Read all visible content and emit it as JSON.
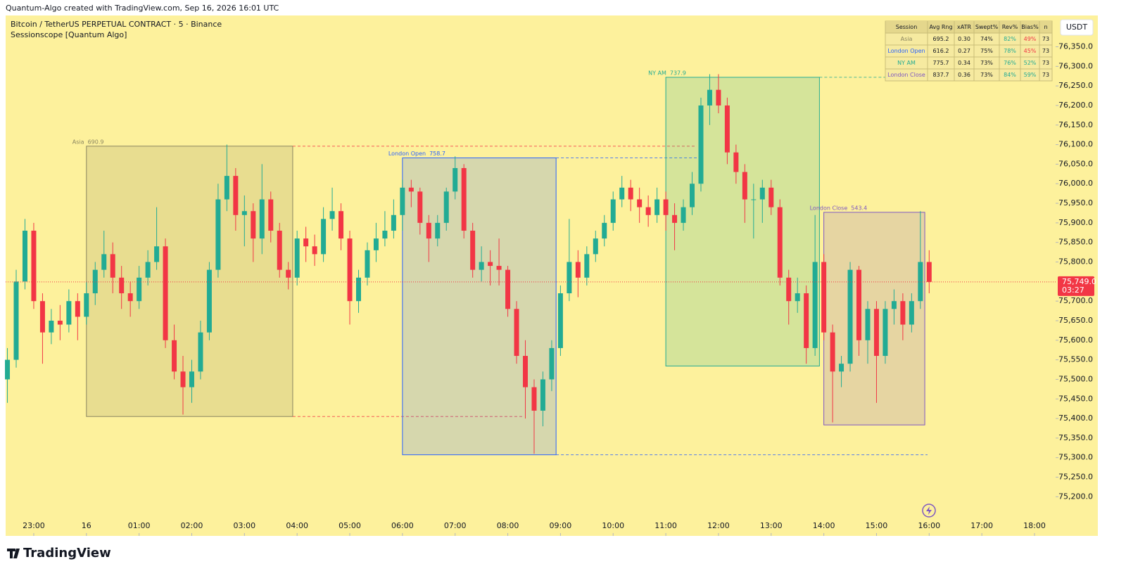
{
  "header": {
    "attribution": "Quantum-Algo created with TradingView.com, Sep 16, 2026 16:01 UTC",
    "brand": "TradingView"
  },
  "chart_data": {
    "type": "candlestick",
    "title": "Bitcoin / TetherUS PERPETUAL CONTRACT · 5 · Binance",
    "subtitle": "Sessionscope [Quantum Algo]",
    "currency": "USDT",
    "up_color": "#22ab94",
    "down_color": "#f23645",
    "ylim": [
      75100,
      76430
    ],
    "yticks": [
      {
        "value": 75200,
        "label": "75,200.0"
      },
      {
        "value": 75250,
        "label": "75,250.0"
      },
      {
        "value": 75300,
        "label": "75,300.0"
      },
      {
        "value": 75350,
        "label": "75,350.0"
      },
      {
        "value": 75400,
        "label": "75,400.0"
      },
      {
        "value": 75450,
        "label": "75,450.0"
      },
      {
        "value": 75500,
        "label": "75,500.0"
      },
      {
        "value": 75550,
        "label": "75,550.0"
      },
      {
        "value": 75600,
        "label": "75,600.0"
      },
      {
        "value": 75650,
        "label": "75,650.0"
      },
      {
        "value": 75700,
        "label": "75,700.0"
      },
      {
        "value": 75800,
        "label": "75,800.0"
      },
      {
        "value": 75850,
        "label": "75,850.0"
      },
      {
        "value": 75900,
        "label": "75,900.0"
      },
      {
        "value": 75950,
        "label": "75,950.0"
      },
      {
        "value": 76000,
        "label": "76,000.0"
      },
      {
        "value": 76050,
        "label": "76,050.0"
      },
      {
        "value": 76100,
        "label": "76,100.0"
      },
      {
        "value": 76150,
        "label": "76,150.0"
      },
      {
        "value": 76200,
        "label": "76,200.0"
      },
      {
        "value": 76250,
        "label": "76,250.0"
      },
      {
        "value": 76300,
        "label": "76,300.0"
      },
      {
        "value": 76350,
        "label": "76,350.0"
      }
    ],
    "xticks": [
      "23:00",
      {
        "value": "00:00",
        "label": "16"
      },
      "01:00",
      "02:00",
      "03:00",
      "04:00",
      "05:00",
      "06:00",
      "07:00",
      "08:00",
      "09:00",
      "10:00",
      "11:00",
      "12:00",
      "13:00",
      "14:00",
      "15:00",
      "16:00",
      "17:00",
      "18:00"
    ],
    "last_price": {
      "value": 75749,
      "label": "75,749.0",
      "countdown": "03:27"
    },
    "x": [
      "22:30",
      "22:40",
      "22:50",
      "23:00",
      "23:10",
      "23:20",
      "23:30",
      "23:40",
      "23:50",
      "00:00",
      "00:10",
      "00:20",
      "00:30",
      "00:40",
      "00:50",
      "01:00",
      "01:10",
      "01:20",
      "01:30",
      "01:40",
      "01:50",
      "02:00",
      "02:10",
      "02:20",
      "02:30",
      "02:40",
      "02:50",
      "03:00",
      "03:10",
      "03:20",
      "03:30",
      "03:40",
      "03:50",
      "04:00",
      "04:10",
      "04:20",
      "04:30",
      "04:40",
      "04:50",
      "05:00",
      "05:10",
      "05:20",
      "05:30",
      "05:40",
      "05:50",
      "06:00",
      "06:10",
      "06:20",
      "06:30",
      "06:40",
      "06:50",
      "07:00",
      "07:10",
      "07:20",
      "07:30",
      "07:40",
      "07:50",
      "08:00",
      "08:10",
      "08:20",
      "08:30",
      "08:40",
      "08:50",
      "09:00",
      "09:10",
      "09:20",
      "09:30",
      "09:40",
      "09:50",
      "10:00",
      "10:10",
      "10:20",
      "10:30",
      "10:40",
      "10:50",
      "11:00",
      "11:10",
      "11:20",
      "11:30",
      "11:40",
      "11:50",
      "12:00",
      "12:10",
      "12:20",
      "12:30",
      "12:40",
      "12:50",
      "13:00",
      "13:10",
      "13:20",
      "13:30",
      "13:40",
      "13:50",
      "14:00",
      "14:10",
      "14:20",
      "14:30",
      "14:40",
      "14:50",
      "15:00",
      "15:10",
      "15:20",
      "15:30",
      "15:40",
      "15:50",
      "16:00"
    ],
    "open": [
      75500,
      75550,
      75750,
      75880,
      75700,
      75620,
      75650,
      75640,
      75700,
      75660,
      75720,
      75780,
      75820,
      75760,
      75720,
      75700,
      75760,
      75800,
      75840,
      75600,
      75520,
      75480,
      75520,
      75620,
      75780,
      75960,
      76020,
      75920,
      75930,
      75860,
      75960,
      75880,
      75780,
      75760,
      75860,
      75840,
      75820,
      75910,
      75930,
      75860,
      75700,
      75760,
      75830,
      75860,
      75880,
      75920,
      75990,
      75980,
      75900,
      75860,
      75900,
      75980,
      76040,
      75880,
      75780,
      75800,
      75790,
      75780,
      75680,
      75560,
      75480,
      75420,
      75500,
      75580,
      75720,
      75800,
      75760,
      75820,
      75860,
      75900,
      75960,
      75990,
      75960,
      75940,
      75920,
      75960,
      75920,
      75900,
      75940,
      76000,
      76200,
      76240,
      76200,
      76080,
      76030,
      75960,
      75960,
      75990,
      75940,
      75760,
      75700,
      75720,
      75580,
      75800,
      75620,
      75520,
      75540,
      75780,
      75600,
      75680,
      75560,
      75680,
      75700,
      75640,
      75700,
      75800
    ],
    "high": [
      75580,
      75780,
      75910,
      75900,
      75720,
      75680,
      75690,
      75730,
      75720,
      75750,
      75800,
      75880,
      75850,
      75790,
      75750,
      75790,
      75830,
      75940,
      75860,
      75640,
      75560,
      75550,
      75650,
      75800,
      76000,
      76100,
      76040,
      75970,
      75950,
      76050,
      75980,
      75900,
      75800,
      75880,
      75890,
      75870,
      75940,
      75990,
      75950,
      75880,
      75780,
      75850,
      75900,
      75930,
      75960,
      76010,
      76010,
      75990,
      75920,
      75920,
      75990,
      76070,
      76050,
      75900,
      75840,
      75830,
      75860,
      75790,
      75700,
      75600,
      75500,
      75520,
      75600,
      75740,
      75910,
      75830,
      75840,
      75880,
      75920,
      75980,
      76020,
      76010,
      75990,
      75970,
      75990,
      75980,
      75950,
      75960,
      76030,
      76220,
      76280,
      76280,
      76220,
      76100,
      76050,
      76000,
      76010,
      76010,
      75960,
      75780,
      75760,
      75740,
      75920,
      75820,
      75640,
      75560,
      75800,
      75790,
      75700,
      75700,
      75700,
      75730,
      75720,
      75720,
      75930,
      75830
    ],
    "low": [
      75440,
      75530,
      75730,
      75680,
      75540,
      75590,
      75600,
      75620,
      75600,
      75640,
      75690,
      75760,
      75720,
      75680,
      75660,
      75680,
      75740,
      75780,
      75580,
      75500,
      75410,
      75440,
      75500,
      75600,
      75760,
      75930,
      75880,
      75840,
      75800,
      75820,
      75850,
      75760,
      75730,
      75740,
      75800,
      75790,
      75800,
      75880,
      75830,
      75640,
      75670,
      75740,
      75800,
      75840,
      75860,
      75880,
      75940,
      75870,
      75800,
      75840,
      75880,
      75960,
      75860,
      75760,
      75750,
      75740,
      75740,
      75660,
      75540,
      75400,
      75310,
      75380,
      75470,
      75560,
      75700,
      75710,
      75740,
      75800,
      75840,
      75880,
      75940,
      75930,
      75900,
      75890,
      75900,
      75880,
      75830,
      75880,
      75920,
      75980,
      76150,
      76180,
      76050,
      76000,
      75900,
      75860,
      75900,
      75920,
      75740,
      75640,
      75670,
      75540,
      75560,
      75600,
      75390,
      75480,
      75520,
      75560,
      75540,
      75440,
      75540,
      75640,
      75600,
      75620,
      75680,
      75720
    ],
    "close": [
      75550,
      75750,
      75880,
      75700,
      75620,
      75650,
      75640,
      75700,
      75660,
      75720,
      75780,
      75820,
      75760,
      75720,
      75700,
      75760,
      75800,
      75840,
      75600,
      75520,
      75480,
      75520,
      75620,
      75780,
      75960,
      76020,
      75920,
      75930,
      75860,
      75960,
      75880,
      75780,
      75760,
      75860,
      75840,
      75820,
      75910,
      75930,
      75860,
      75700,
      75760,
      75830,
      75860,
      75880,
      75920,
      75990,
      75980,
      75900,
      75860,
      75900,
      75980,
      76040,
      75880,
      75780,
      75800,
      75790,
      75780,
      75680,
      75560,
      75480,
      75420,
      75500,
      75580,
      75720,
      75800,
      75760,
      75820,
      75860,
      75900,
      75960,
      75990,
      75960,
      75940,
      75920,
      75960,
      75920,
      75900,
      75940,
      76000,
      76200,
      76240,
      76200,
      76080,
      76030,
      75960,
      75960,
      75990,
      75940,
      75760,
      75700,
      75720,
      75580,
      75800,
      75620,
      75520,
      75540,
      75780,
      75600,
      75680,
      75560,
      75680,
      75700,
      75640,
      75700,
      75800,
      75749
    ],
    "sessions": [
      {
        "name": "Asia",
        "range": 690.9,
        "start": "00:00",
        "end": "03:55",
        "high": 76096,
        "low": 75405.1,
        "color": "#8a8560"
      },
      {
        "name": "London Open",
        "range": 758.7,
        "start": "06:00",
        "end": "08:55",
        "high": 76066,
        "low": 75307.3,
        "color": "#2962ff"
      },
      {
        "name": "NY AM",
        "range": 737.9,
        "start": "11:00",
        "end": "13:55",
        "high": 76272,
        "low": 75534.1,
        "color": "#22ab94"
      },
      {
        "name": "London Close",
        "range": 543.4,
        "start": "14:00",
        "end": "15:55",
        "high": 75927,
        "low": 75383.6,
        "color": "#7e57c2"
      }
    ],
    "stats_table": {
      "header": [
        "Session",
        "Avg Rng",
        "xATR",
        "Swept%",
        "Rev%",
        "Bias%",
        "n"
      ],
      "rows": [
        [
          "Asia",
          "695.2",
          "0.30",
          "74%",
          "82%",
          "49%",
          "73"
        ],
        [
          "London Open",
          "616.2",
          "0.27",
          "75%",
          "78%",
          "45%",
          "73"
        ],
        [
          "NY AM",
          "775.7",
          "0.34",
          "73%",
          "76%",
          "52%",
          "73"
        ],
        [
          "London Close",
          "837.7",
          "0.36",
          "73%",
          "84%",
          "59%",
          "73"
        ]
      ]
    }
  }
}
